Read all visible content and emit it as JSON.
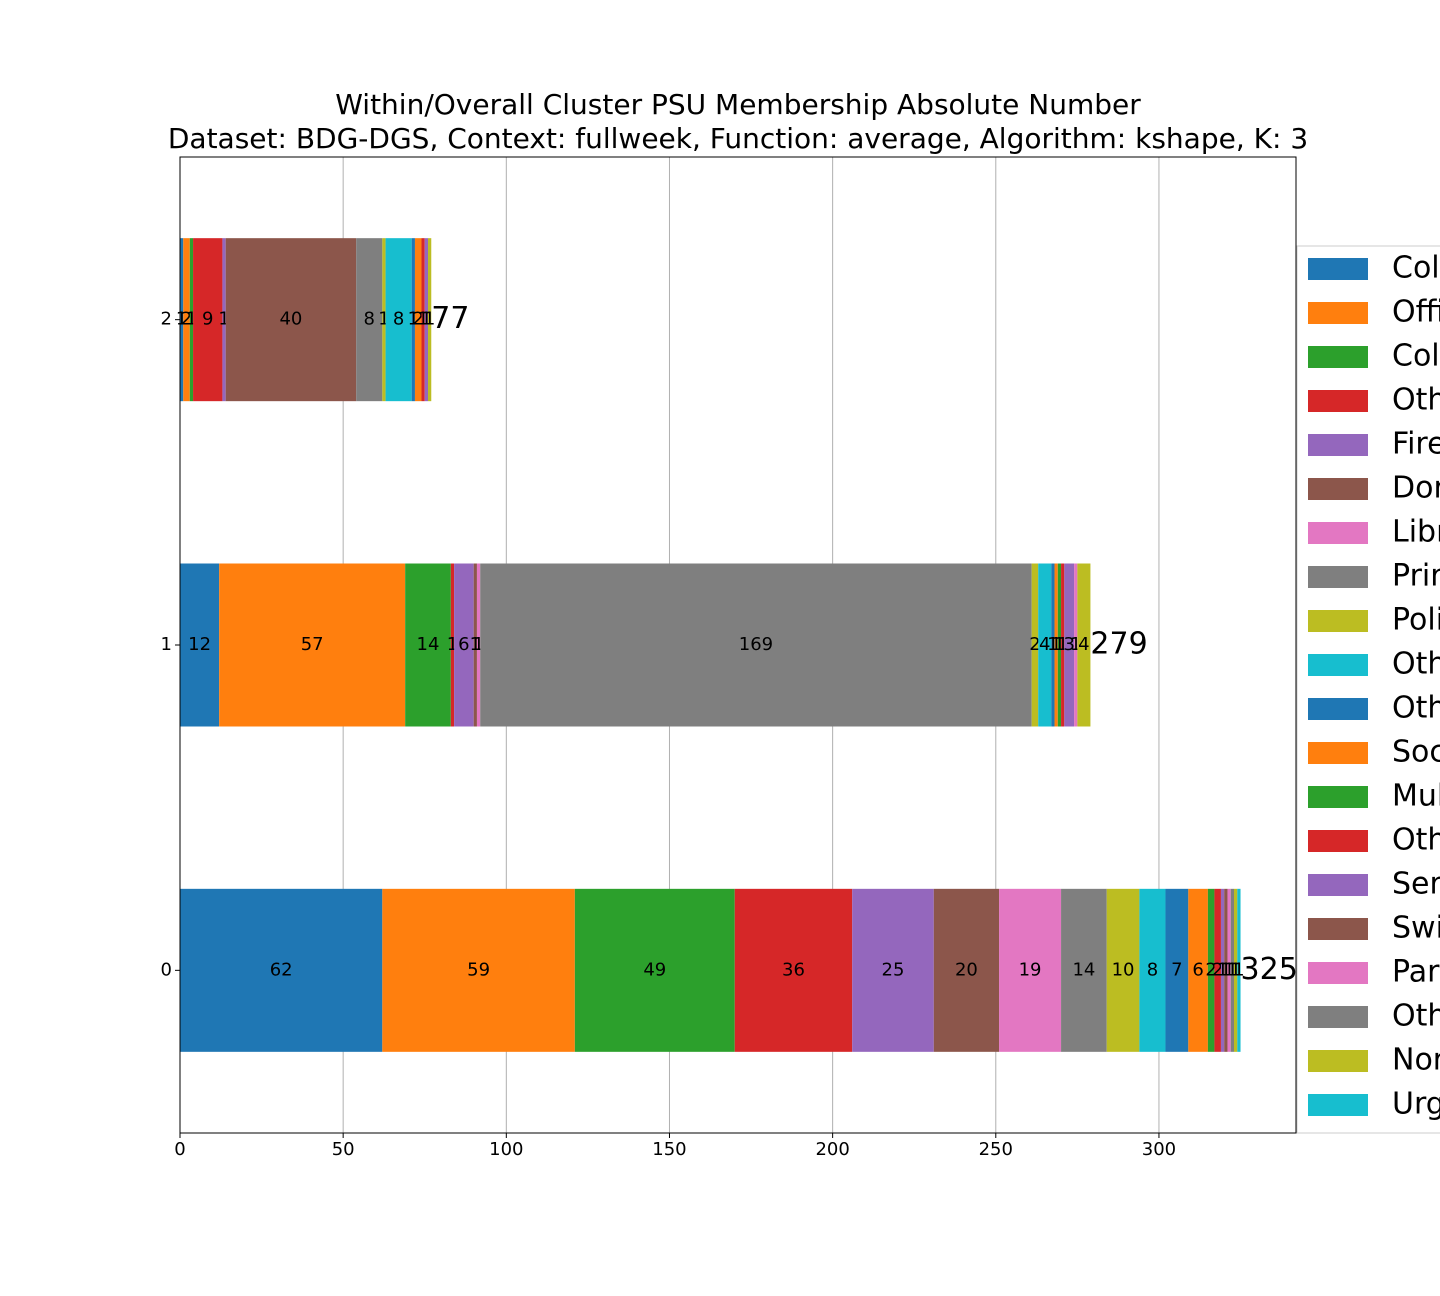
{
  "chart_data": {
    "type": "stacked-barh",
    "title": "Within/Overall Cluster PSU Membership Absolute Number",
    "subtitle": "Dataset: BDG-DGS, Context: fullweek, Function: average, Algorithm: kshape, K: 3",
    "categories": [
      "0",
      "1",
      "2"
    ],
    "series": [
      {
        "name": "Col",
        "color": "#1f77b4",
        "values": [
          62,
          12,
          1
        ]
      },
      {
        "name": "Offi",
        "color": "#ff7f0e",
        "values": [
          59,
          57,
          2
        ]
      },
      {
        "name": "Col",
        "color": "#2ca02c",
        "values": [
          49,
          14,
          1
        ]
      },
      {
        "name": "Oth",
        "color": "#d62728",
        "values": [
          36,
          1,
          9
        ]
      },
      {
        "name": "Fire",
        "color": "#9467bd",
        "values": [
          25,
          6,
          1
        ]
      },
      {
        "name": "Dor",
        "color": "#8c564b",
        "values": [
          20,
          1,
          40
        ]
      },
      {
        "name": "Libr",
        "color": "#e377c2",
        "values": [
          19,
          1,
          0
        ]
      },
      {
        "name": "Prir",
        "color": "#7f7f7f",
        "values": [
          14,
          169,
          8
        ]
      },
      {
        "name": "Poli",
        "color": "#bcbd22",
        "values": [
          10,
          2,
          1
        ]
      },
      {
        "name": "Oth",
        "color": "#17becf",
        "values": [
          8,
          4,
          8
        ]
      },
      {
        "name": "Oth",
        "color": "#1f77b4",
        "values": [
          7,
          1,
          1
        ]
      },
      {
        "name": "Soc",
        "color": "#ff7f0e",
        "values": [
          6,
          1,
          2
        ]
      },
      {
        "name": "Mul",
        "color": "#2ca02c",
        "values": [
          2,
          1,
          0
        ]
      },
      {
        "name": "Oth",
        "color": "#d62728",
        "values": [
          2,
          1,
          1
        ]
      },
      {
        "name": "Ser",
        "color": "#9467bd",
        "values": [
          1,
          3,
          1
        ]
      },
      {
        "name": "Swi",
        "color": "#8c564b",
        "values": [
          1,
          0,
          0
        ]
      },
      {
        "name": "Par",
        "color": "#e377c2",
        "values": [
          1,
          1,
          0
        ]
      },
      {
        "name": "Oth",
        "color": "#7f7f7f",
        "values": [
          1,
          0,
          0
        ]
      },
      {
        "name": "Nor",
        "color": "#bcbd22",
        "values": [
          1,
          4,
          1
        ]
      },
      {
        "name": "Urg",
        "color": "#17becf",
        "values": [
          1,
          0,
          0
        ]
      }
    ],
    "totals": [
      325,
      279,
      77
    ],
    "xlim": [
      0,
      342
    ],
    "xticks": [
      0,
      50,
      100,
      150,
      200,
      250,
      300
    ],
    "grid": true
  }
}
